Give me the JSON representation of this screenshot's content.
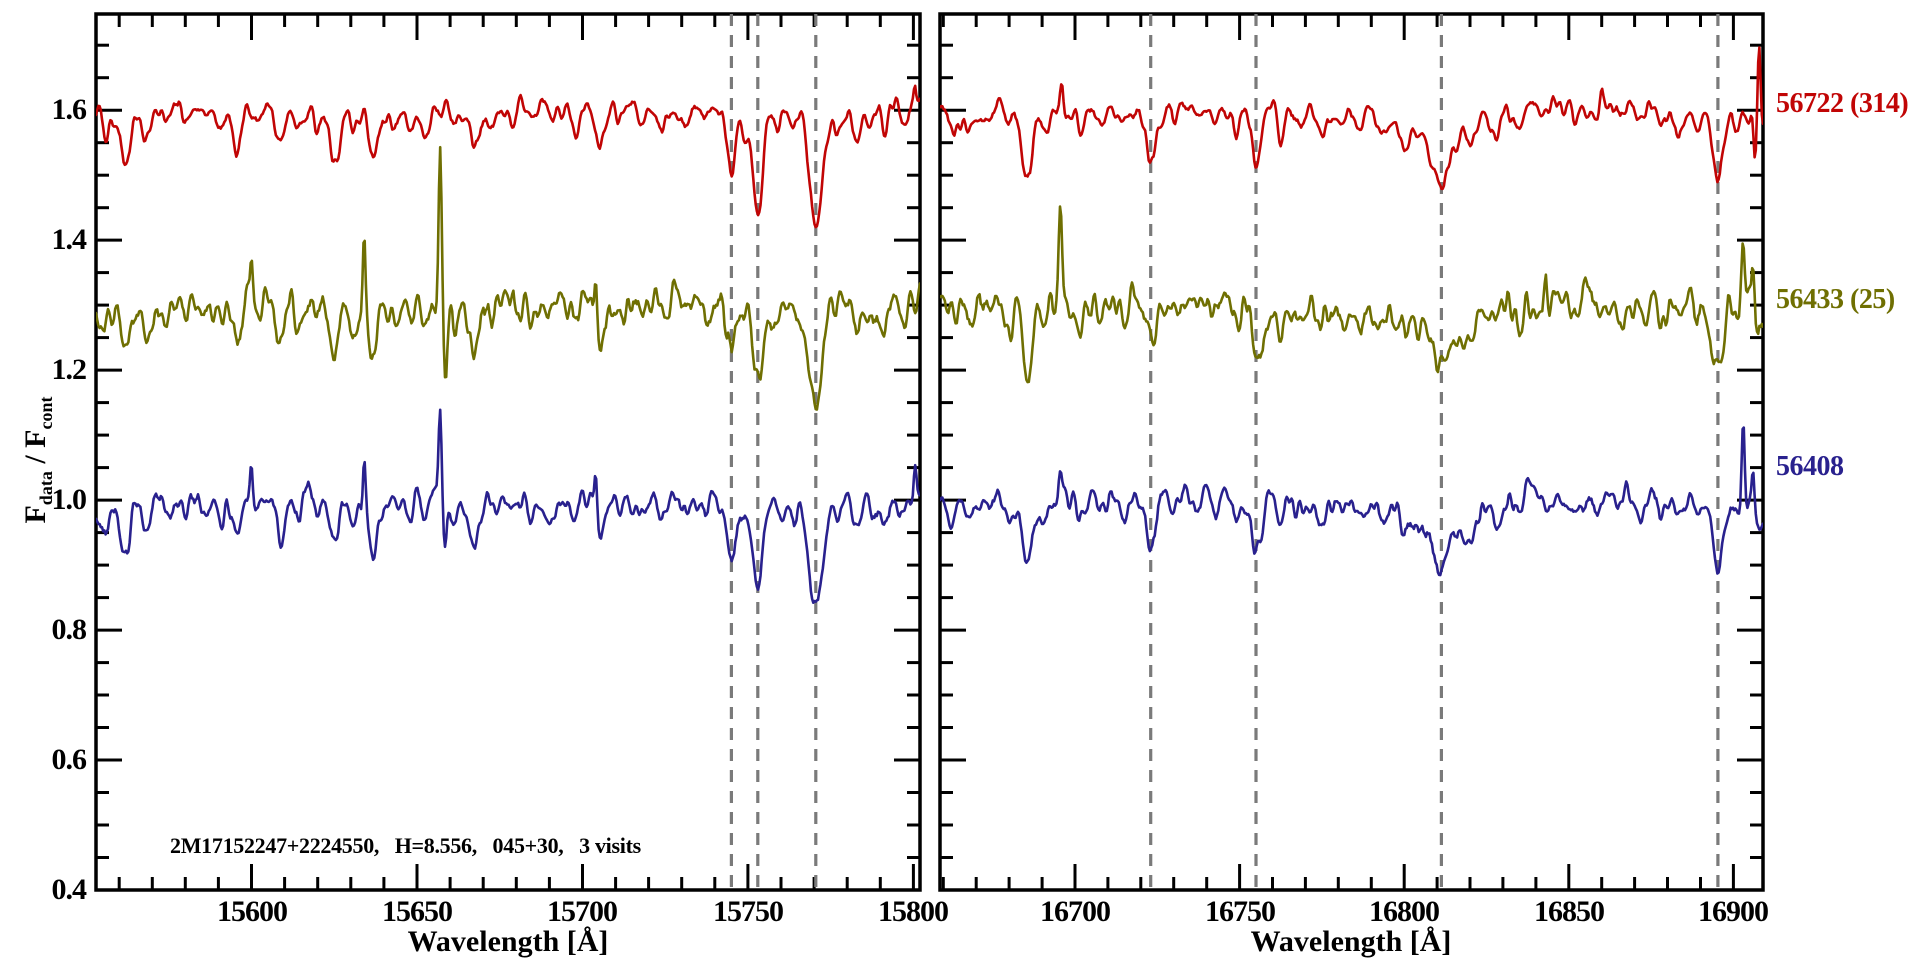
{
  "chart_data": {
    "type": "line",
    "title": "",
    "xlabel": "Wavelength [Å]",
    "ylabel": "F_data / F_cont",
    "ylabel_parts": {
      "f1": "F",
      "sub1": "data",
      "mid": " / F",
      "sub2": "cont"
    },
    "annotation": "2M17152247+2224550,   H=8.556,   045+30,   3 visits",
    "ylim": [
      0.4,
      1.748
    ],
    "yticks": {
      "major": [
        0.4,
        0.6,
        0.8,
        1.0,
        1.2,
        1.4,
        1.6
      ],
      "labels": [
        "0.4",
        "0.6",
        "0.8",
        "1.0",
        "1.2",
        "1.4",
        "1.6"
      ],
      "minor_step": 0.05
    },
    "grid": "off",
    "frame_color": "#000000",
    "dashed_line_color": "#7a7a7a",
    "background": "#ffffff",
    "panels": [
      {
        "id": "left",
        "xlim": [
          15553,
          15802
        ],
        "xticks": {
          "major": [
            15600,
            15650,
            15700,
            15750,
            15800
          ],
          "labels": [
            "15600",
            "15650",
            "15700",
            "15750",
            "15800"
          ],
          "minor_step": 10
        },
        "dashed_lines": [
          15745.0,
          15753.0,
          15770.5
        ],
        "absorption_features": [
          [
            15556.0,
            0.035,
            1.2
          ],
          [
            15561.8,
            0.075,
            1.3
          ],
          [
            15568.0,
            0.04,
            1.4
          ],
          [
            15574.0,
            0.02,
            1.0
          ],
          [
            15580.0,
            0.018,
            1.0
          ],
          [
            15586.0,
            0.022,
            1.0
          ],
          [
            15591.0,
            0.028,
            1.0
          ],
          [
            15595.6,
            0.07,
            1.3
          ],
          [
            15602.0,
            0.02,
            0.9
          ],
          [
            15608.5,
            0.048,
            1.2
          ],
          [
            15614.0,
            0.022,
            0.9
          ],
          [
            15620.0,
            0.028,
            1.0
          ],
          [
            15625.3,
            0.075,
            1.3
          ],
          [
            15630.5,
            0.035,
            0.9
          ],
          [
            15636.8,
            0.075,
            1.3
          ],
          [
            15643.0,
            0.02,
            0.9
          ],
          [
            15648.0,
            0.018,
            0.9
          ],
          [
            15652.5,
            0.038,
            1.0
          ],
          [
            15661.0,
            0.025,
            0.9
          ],
          [
            15667.5,
            0.058,
            1.3
          ],
          [
            15673.0,
            0.022,
            0.9
          ],
          [
            15679.0,
            0.018,
            0.9
          ],
          [
            15684.5,
            0.032,
            1.0
          ],
          [
            15691.0,
            0.02,
            0.9
          ],
          [
            15698.0,
            0.028,
            1.0
          ],
          [
            15705.5,
            0.058,
            1.3
          ],
          [
            15711.0,
            0.025,
            0.9
          ],
          [
            15718.0,
            0.02,
            0.9
          ],
          [
            15724.0,
            0.022,
            0.9
          ],
          [
            15731.0,
            0.018,
            0.9
          ],
          [
            15737.0,
            0.02,
            0.9
          ],
          [
            15745.0,
            0.09,
            1.3
          ],
          [
            15749.0,
            0.03,
            0.8
          ],
          [
            15753.0,
            0.14,
            1.5
          ],
          [
            15759.0,
            0.025,
            0.9
          ],
          [
            15763.5,
            0.032,
            0.9
          ],
          [
            15770.5,
            0.165,
            2.0
          ],
          [
            15777.0,
            0.03,
            0.9
          ],
          [
            15783.0,
            0.048,
            1.1
          ],
          [
            15788.0,
            0.025,
            0.9
          ],
          [
            15791.5,
            0.042,
            1.0
          ],
          [
            15797.0,
            0.028,
            0.9
          ]
        ]
      },
      {
        "id": "right",
        "xlim": [
          16659,
          16909
        ],
        "xticks": {
          "major": [
            16700,
            16750,
            16800,
            16850,
            16900
          ],
          "labels": [
            "16700",
            "16750",
            "16800",
            "16850",
            "16900"
          ],
          "minor_step": 10
        },
        "dashed_lines": [
          16723.0,
          16755.0,
          16811.3,
          16895.3
        ],
        "absorption_features": [
          [
            16663.0,
            0.035,
            1.1
          ],
          [
            16668.0,
            0.025,
            1.0
          ],
          [
            16674.0,
            0.02,
            0.9
          ],
          [
            16680.0,
            0.025,
            1.0
          ],
          [
            16685.3,
            0.1,
            1.4
          ],
          [
            16691.0,
            0.025,
            0.9
          ],
          [
            16702.0,
            0.028,
            1.0
          ],
          [
            16708.0,
            0.02,
            0.9
          ],
          [
            16715.0,
            0.022,
            0.9
          ],
          [
            16723.0,
            0.08,
            1.4
          ],
          [
            16730.0,
            0.02,
            0.9
          ],
          [
            16737.0,
            0.02,
            0.9
          ],
          [
            16743.0,
            0.022,
            0.9
          ],
          [
            16749.5,
            0.032,
            0.9
          ],
          [
            16755.3,
            0.09,
            1.4
          ],
          [
            16762.5,
            0.04,
            1.0
          ],
          [
            16768.0,
            0.025,
            0.9
          ],
          [
            16775.0,
            0.032,
            1.0
          ],
          [
            16781.0,
            0.02,
            0.9
          ],
          [
            16786.5,
            0.028,
            1.0
          ],
          [
            16793.0,
            0.022,
            0.9
          ],
          [
            16800.0,
            0.025,
            1.2
          ],
          [
            16811.3,
            0.055,
            8.0
          ],
          [
            16811.4,
            0.052,
            2.2
          ],
          [
            16820.0,
            0.02,
            1.0
          ],
          [
            16828.0,
            0.032,
            1.0
          ],
          [
            16835.0,
            0.02,
            0.9
          ],
          [
            16843.0,
            0.018,
            0.9
          ],
          [
            16852.0,
            0.022,
            0.9
          ],
          [
            16859.0,
            0.018,
            0.9
          ],
          [
            16866.0,
            0.02,
            0.9
          ],
          [
            16872.0,
            0.022,
            0.9
          ],
          [
            16878.0,
            0.02,
            0.9
          ],
          [
            16883.5,
            0.028,
            1.0
          ],
          [
            16889.0,
            0.025,
            0.9
          ],
          [
            16895.3,
            0.105,
            1.5
          ],
          [
            16901.0,
            0.025,
            0.8
          ],
          [
            16908.0,
            0.04,
            1.0
          ]
        ]
      }
    ],
    "series": [
      {
        "name": "56722 (314)",
        "color": "#c10505",
        "offset": 1.6,
        "label_flux": 1.605,
        "noise": 0.007,
        "depth_scale": 1.05,
        "artifacts": {
          "left": [
            [
              15800.5,
              0.03,
              0.4
            ]
          ],
          "right": [
            [
              16696.0,
              0.05,
              0.5
            ],
            [
              16860.0,
              0.03,
              0.6
            ],
            [
              16906.5,
              -0.05,
              0.4
            ],
            [
              16907.8,
              0.16,
              0.45
            ]
          ]
        }
      },
      {
        "name": "56433 (25)",
        "color": "#6f6f02",
        "offset": 1.3,
        "label_flux": 1.303,
        "noise": 0.013,
        "depth_scale": 0.9,
        "artifacts": {
          "left": [
            [
              15600.0,
              0.07,
              0.4
            ],
            [
              15634.0,
              0.11,
              0.4
            ],
            [
              15657.0,
              0.24,
              0.45
            ],
            [
              15658.6,
              -0.12,
              0.5
            ],
            [
              15679.0,
              0.04,
              0.5
            ],
            [
              15704.0,
              0.075,
              0.4
            ]
          ],
          "right": [
            [
              16695.5,
              0.15,
              0.5
            ],
            [
              16843.0,
              0.07,
              0.5
            ],
            [
              16903.0,
              0.105,
              0.5
            ],
            [
              16906.0,
              0.06,
              0.4
            ]
          ]
        }
      },
      {
        "name": "56408",
        "color": "#29218e",
        "offset": 1.0,
        "label_flux": 1.046,
        "noise": 0.009,
        "depth_scale": 1.0,
        "artifacts": {
          "left": [
            [
              15600.0,
              0.05,
              0.4
            ],
            [
              15634.0,
              0.075,
              0.4
            ],
            [
              15657.0,
              0.145,
              0.45
            ],
            [
              15658.4,
              -0.075,
              0.5
            ],
            [
              15704.0,
              0.06,
              0.4
            ],
            [
              15800.5,
              0.05,
              0.4
            ]
          ],
          "right": [
            [
              16695.5,
              0.04,
              0.5
            ],
            [
              16903.0,
              0.125,
              0.45
            ],
            [
              16906.0,
              0.05,
              0.4
            ]
          ]
        }
      }
    ]
  }
}
